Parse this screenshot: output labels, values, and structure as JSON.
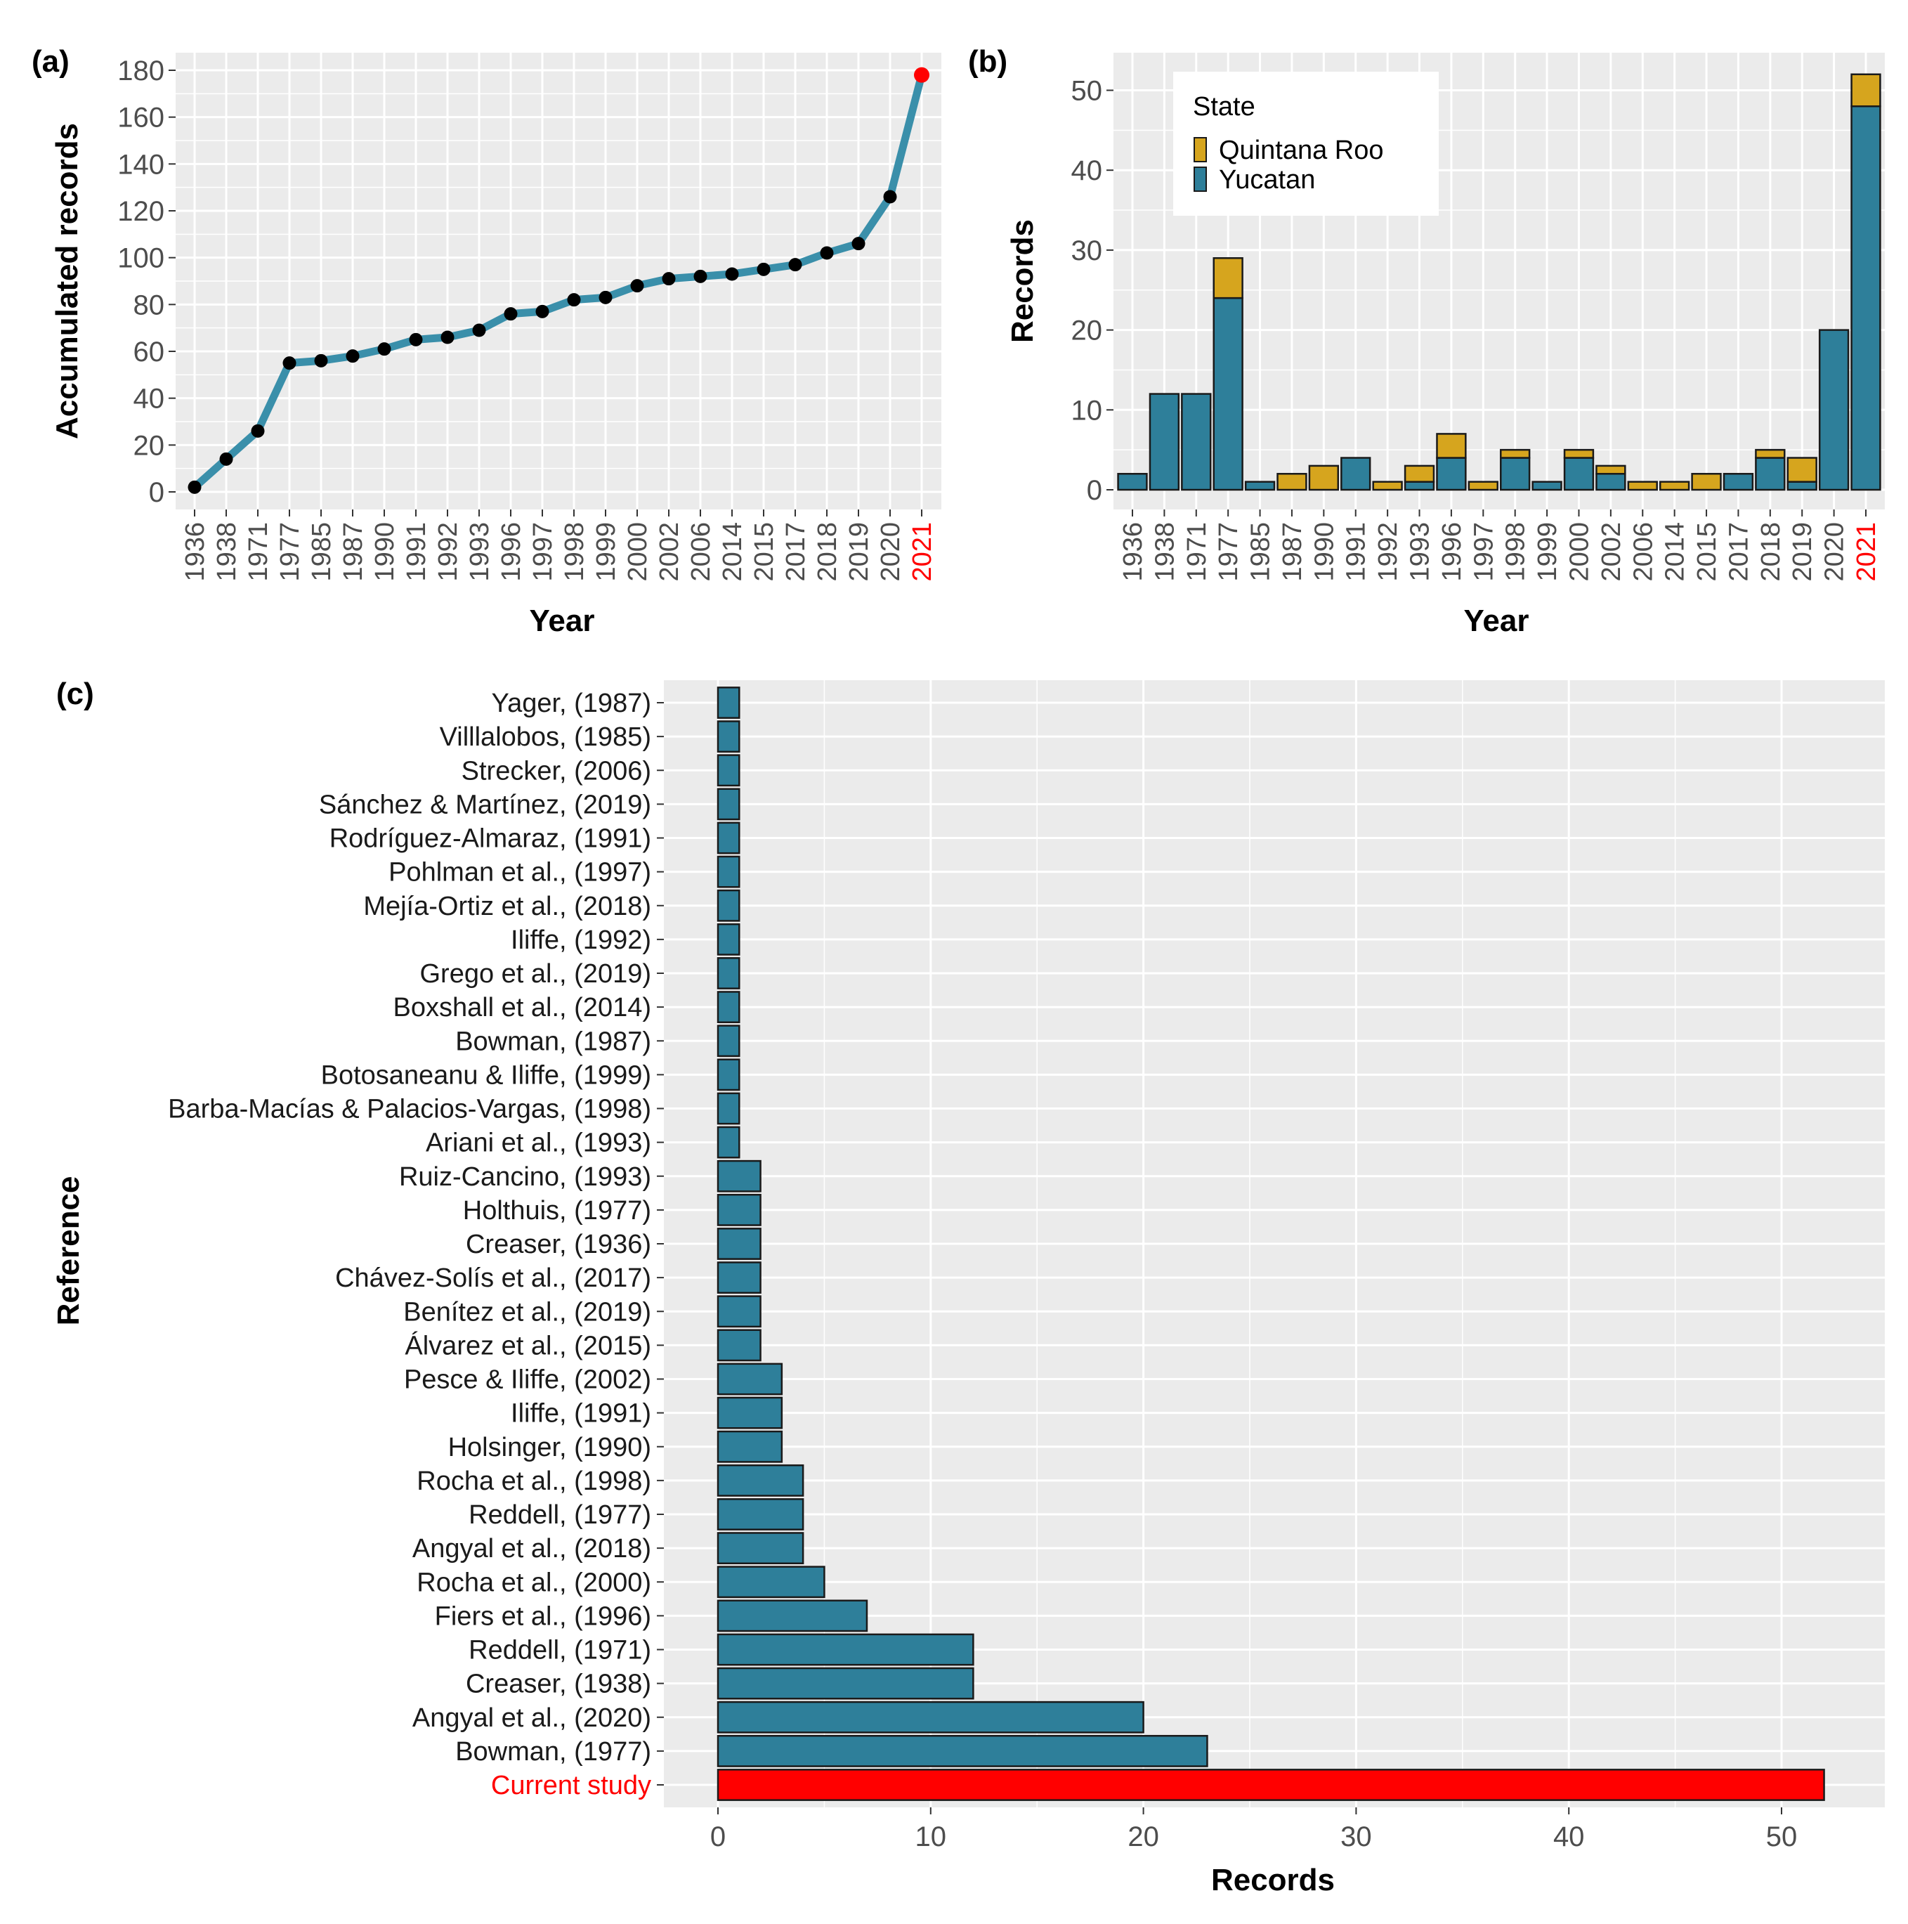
{
  "colors": {
    "panel_bg": "#ebebeb",
    "grid": "#ffffff",
    "line": "#3a8faa",
    "point": "#000000",
    "highlight": "#ff0000",
    "yucatan": "#2e7f9a",
    "quintana_roo": "#d6a51e",
    "bar_outline": "#1a1a1a",
    "tick_text": "#4d4d4d"
  },
  "chart_data": [
    {
      "panel": "(a)",
      "type": "line",
      "xlabel": "Year",
      "ylabel": "Accumulated records",
      "ylim": [
        0,
        180
      ],
      "yticks": [
        0,
        20,
        40,
        60,
        80,
        100,
        120,
        140,
        160,
        180
      ],
      "categories": [
        "1936",
        "1938",
        "1971",
        "1977",
        "1985",
        "1987",
        "1990",
        "1991",
        "1992",
        "1993",
        "1996",
        "1997",
        "1998",
        "1999",
        "2000",
        "2002",
        "2006",
        "2014",
        "2015",
        "2017",
        "2018",
        "2019",
        "2020",
        "2021"
      ],
      "values": [
        2,
        14,
        26,
        55,
        56,
        58,
        61,
        65,
        66,
        69,
        76,
        77,
        82,
        83,
        88,
        91,
        92,
        93,
        95,
        97,
        102,
        106,
        126,
        178
      ],
      "highlight": "2021"
    },
    {
      "panel": "(b)",
      "type": "bar",
      "stacked": true,
      "xlabel": "Year",
      "ylabel": "Records",
      "ylim": [
        0,
        52
      ],
      "yticks": [
        0,
        10,
        20,
        30,
        40,
        50
      ],
      "legend_title": "State",
      "legend_position": "top-left",
      "categories": [
        "1936",
        "1938",
        "1971",
        "1977",
        "1985",
        "1987",
        "1990",
        "1991",
        "1992",
        "1993",
        "1996",
        "1997",
        "1998",
        "1999",
        "2000",
        "2002",
        "2006",
        "2014",
        "2015",
        "2017",
        "2018",
        "2019",
        "2020",
        "2021"
      ],
      "highlight": "2021",
      "series": [
        {
          "name": "Yucatan",
          "values": [
            2,
            12,
            12,
            24,
            1,
            0,
            0,
            4,
            0,
            1,
            4,
            0,
            4,
            1,
            4,
            2,
            0,
            0,
            0,
            2,
            4,
            1,
            20,
            48
          ]
        },
        {
          "name": "Quintana Roo",
          "values": [
            0,
            0,
            0,
            5,
            0,
            2,
            3,
            0,
            1,
            2,
            3,
            1,
            1,
            0,
            1,
            1,
            1,
            1,
            2,
            0,
            1,
            3,
            0,
            4
          ]
        }
      ],
      "legend_order": [
        "Quintana Roo",
        "Yucatan"
      ]
    },
    {
      "panel": "(c)",
      "type": "bar",
      "orientation": "horizontal",
      "xlabel": "Records",
      "ylabel": "Reference",
      "xlim": [
        0,
        54.5
      ],
      "xticks": [
        0,
        10,
        20,
        30,
        40,
        50
      ],
      "highlight": "Current study",
      "categories": [
        "Yager, (1987)",
        "Villlalobos, (1985)",
        "Strecker, (2006)",
        "Sánchez & Martínez, (2019)",
        "Rodríguez-Almaraz, (1991)",
        "Pohlman et al., (1997)",
        "Mejía-Ortiz et al., (2018)",
        "Iliffe, (1992)",
        "Grego et al., (2019)",
        "Boxshall et al., (2014)",
        "Bowman, (1987)",
        "Botosaneanu & Iliffe, (1999)",
        "Barba-Macías & Palacios-Vargas, (1998)",
        "Ariani et al., (1993)",
        "Ruiz-Cancino, (1993)",
        "Holthuis, (1977)",
        "Creaser, (1936)",
        "Chávez-Solís et al., (2017)",
        "Benítez et al., (2019)",
        "Álvarez et al., (2015)",
        "Pesce & Iliffe, (2002)",
        "Iliffe, (1991)",
        "Holsinger, (1990)",
        "Rocha et al., (1998)",
        "Reddell, (1977)",
        "Angyal et al., (2018)",
        "Rocha et al., (2000)",
        "Fiers et al., (1996)",
        "Reddell, (1971)",
        "Creaser, (1938)",
        "Angyal et al., (2020)",
        "Bowman, (1977)",
        "Current study"
      ],
      "values": [
        1,
        1,
        1,
        1,
        1,
        1,
        1,
        1,
        1,
        1,
        1,
        1,
        1,
        1,
        2,
        2,
        2,
        2,
        2,
        2,
        3,
        3,
        3,
        4,
        4,
        4,
        5,
        7,
        12,
        12,
        20,
        23,
        52
      ]
    }
  ]
}
